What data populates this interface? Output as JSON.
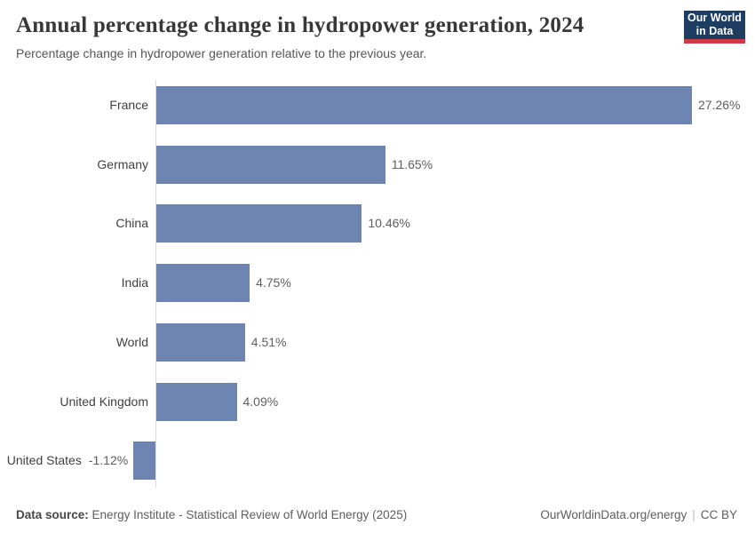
{
  "header": {
    "title": "Annual percentage change in hydropower generation, 2024",
    "subtitle": "Percentage change in hydropower generation relative to the previous year.",
    "logo": {
      "line1": "Our World",
      "line2": "in Data"
    }
  },
  "chart_data": {
    "type": "bar",
    "orientation": "horizontal",
    "title": "Annual percentage change in hydropower generation, 2024",
    "subtitle": "Percentage change in hydropower generation relative to the previous year.",
    "categories": [
      "France",
      "Germany",
      "China",
      "India",
      "World",
      "United Kingdom",
      "United States"
    ],
    "values": [
      27.26,
      11.65,
      10.46,
      4.75,
      4.51,
      4.09,
      -1.12
    ],
    "value_labels": [
      "27.26%",
      "11.65%",
      "10.46%",
      "4.75%",
      "4.51%",
      "4.09%",
      "-1.12%"
    ],
    "xlabel": "",
    "ylabel": "",
    "xlim": [
      -1.12,
      27.26
    ],
    "unit": "%",
    "grid": false,
    "legend": "none",
    "bar_color": "#6e85b1",
    "axis_line_color": "#dcdcdc"
  },
  "colors": {
    "bar": "#6e85b1",
    "logo_navy": "#1d3d63",
    "logo_red": "#cf3b44",
    "title_text": "#383838",
    "subtitle_text": "#565656",
    "entity_text": "#404040",
    "value_text": "#5e5e5e",
    "background": "#ffffff"
  },
  "footer": {
    "data_source_label": "Data source:",
    "data_source_value": "Energy Institute - Statistical Review of World Energy (2025)",
    "url": "OurWorldinData.org/energy",
    "separator": "|",
    "license": "CC BY"
  }
}
